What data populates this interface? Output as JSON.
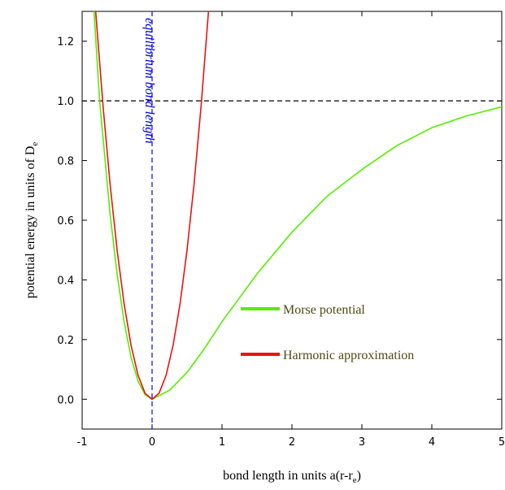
{
  "chart_data": {
    "type": "line",
    "xlabel": [
      "bond length in units a(r-r",
      "e",
      ")"
    ],
    "ylabel": [
      "potential energy in units of D",
      "e"
    ],
    "annotation": "equilibrium bond length",
    "xlim": [
      -1,
      5
    ],
    "ylim": [
      -0.1,
      1.3
    ],
    "xticks": [
      -1,
      0,
      1,
      2,
      3,
      4,
      5
    ],
    "yticks": [
      {
        "value": 0,
        "label": "0.0"
      },
      {
        "value": 0.2,
        "label": "0.2"
      },
      {
        "value": 0.4,
        "label": "0.4"
      },
      {
        "value": 0.6,
        "label": "0.6"
      },
      {
        "value": 0.8,
        "label": "0.8"
      },
      {
        "value": 1.0,
        "label": "1.0"
      },
      {
        "value": 1.2,
        "label": "1.2"
      }
    ],
    "reference_lines": [
      {
        "axis": "y",
        "value": 1.0,
        "color": "#000000"
      },
      {
        "axis": "x",
        "value": 0,
        "color": "#0000ff"
      }
    ],
    "legend": "lower right",
    "series": [
      {
        "name": "Morse potential",
        "color": "#55ee00",
        "x": [
          -0.83,
          -0.75,
          -0.6,
          -0.5,
          -0.4,
          -0.3,
          -0.2,
          -0.1,
          0,
          0.25,
          0.5,
          0.75,
          1,
          1.25,
          1.5,
          2,
          2.5,
          3,
          3.5,
          4,
          4.5,
          5
        ],
        "values": [
          1.3,
          1.0,
          0.62,
          0.42,
          0.26,
          0.14,
          0.06,
          0.015,
          0,
          0.03,
          0.09,
          0.17,
          0.26,
          0.34,
          0.42,
          0.56,
          0.68,
          0.77,
          0.85,
          0.91,
          0.95,
          0.98
        ]
      },
      {
        "name": "Harmonic approximation",
        "color": "#ee1111",
        "x": [
          -0.81,
          -0.7,
          -0.6,
          -0.5,
          -0.4,
          -0.3,
          -0.2,
          -0.1,
          0,
          0.1,
          0.2,
          0.3,
          0.4,
          0.5,
          0.6,
          0.7,
          0.81
        ],
        "values": [
          1.31,
          0.98,
          0.72,
          0.5,
          0.32,
          0.18,
          0.08,
          0.02,
          0,
          0.02,
          0.08,
          0.18,
          0.32,
          0.5,
          0.72,
          0.98,
          1.31
        ]
      }
    ]
  }
}
